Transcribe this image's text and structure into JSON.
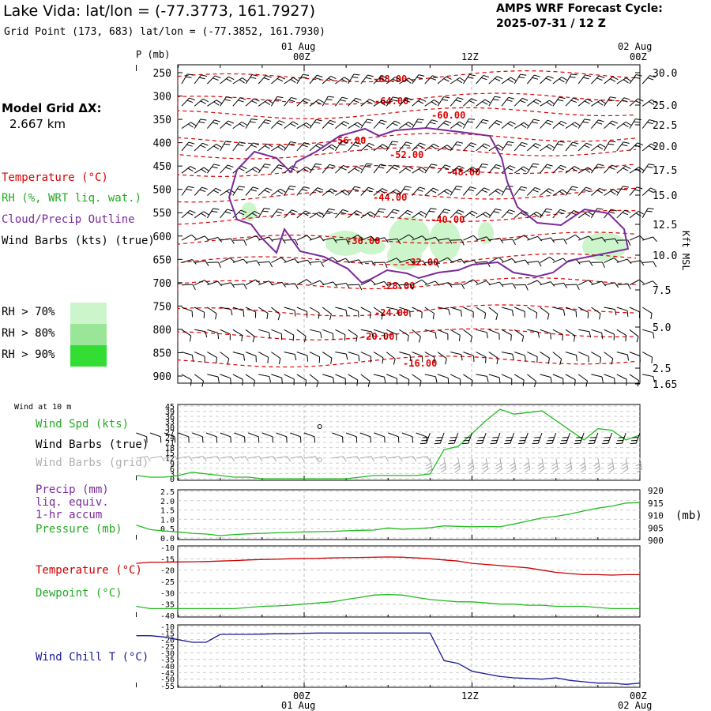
{
  "header": {
    "title": "Lake Vida:  lat/lon = (-77.3773, 161.7927)",
    "subtitle": "Grid Point (173, 683) lat/lon = (-77.3852, 161.7930)",
    "forecast_label": "AMPS WRF Forecast Cycle:",
    "forecast_cycle": "2025-07-31 / 12  Z",
    "grid_label": "Model Grid ΔX:",
    "grid_value": "2.667 km"
  },
  "legend_top": {
    "temperature": "Temperature (°C)",
    "rh": "RH (%, WRT liq. wat.)",
    "cloud": "Cloud/Precip Outline",
    "wind": "Wind Barbs (kts) (true)",
    "rh70": "RH > 70%",
    "rh80": "RH > 80%",
    "rh90": "RH > 90%"
  },
  "colors": {
    "temperature": "#dd0000",
    "rh_label": "#22aa22",
    "cloud": "#7a2a9a",
    "rh70": "#ccf5cc",
    "rh80": "#99e699",
    "rh90": "#33dd33",
    "wind_speed": "#22bb22",
    "precip": "#7a2a9a",
    "pressure": "#22bb22",
    "sfc_temp": "#cc0000",
    "dewpoint": "#22bb22",
    "windchill": "#1a1a99",
    "grid_barbs": "#aaaaaa"
  },
  "time_axis": {
    "top_date_left": "01 Aug",
    "top_date_right": "02 Aug",
    "ticks": [
      "00Z",
      "12Z",
      "00Z"
    ],
    "bottom_date_left": "01 Aug",
    "bottom_date_right": "02 Aug"
  },
  "cross_section": {
    "p_label": "P (mb)",
    "pressure_ticks": [
      "250",
      "300",
      "350",
      "400",
      "450",
      "500",
      "550",
      "600",
      "650",
      "700",
      "750",
      "800",
      "850",
      "900"
    ],
    "height_label": "Kft MSL",
    "height_ticks": [
      "30.0",
      "25.0",
      "22.5",
      "20.0",
      "17.5",
      "15.0",
      "12.5",
      "10.0",
      "7.5",
      "5.0",
      "2.5",
      "1.65"
    ],
    "isotherm_labels": [
      "-68.00",
      "-64.00",
      "-60.00",
      "-56.00",
      "-52.00",
      "-48.00",
      "-44.00",
      "-40.00",
      "-36.00",
      "-32.00",
      "-28.00",
      "-24.00",
      "-20.00",
      "-16.00"
    ]
  },
  "panel_wind": {
    "header": "Wind at 10 m",
    "spd_label": "Wind Spd (kts)",
    "barbs_true": "Wind Barbs (true)",
    "barbs_grid": "Wind Barbs (grid)",
    "yticks": [
      "45",
      "39",
      "36",
      "33",
      "30",
      "27",
      "24",
      "21",
      "18",
      "15",
      "12",
      "9",
      "6",
      "3",
      "0"
    ]
  },
  "panel_precip": {
    "precip_label": "Precip (mm)",
    "liq": "liq. equiv.",
    "accum": "1-hr accum",
    "pressure_label": "Pressure (mb)",
    "unit": "(mb)",
    "left_ticks": [
      "2.5",
      "2.0",
      "1.5",
      "1.0",
      "0.5",
      "0.0"
    ],
    "right_ticks": [
      "920",
      "915",
      "910",
      "905",
      "900"
    ]
  },
  "panel_temp": {
    "temp_label": "Temperature (°C)",
    "dew_label": "Dewpoint (°C)",
    "yticks": [
      "-10",
      "-15",
      "-20",
      "-25",
      "-30",
      "-35",
      "-40"
    ]
  },
  "panel_chill": {
    "label": "Wind Chill T (°C)",
    "yticks": [
      "-10",
      "-15",
      "-20",
      "-25",
      "-30",
      "-35",
      "-40",
      "-45",
      "-50",
      "-55"
    ]
  },
  "chart_data": [
    {
      "type": "line",
      "title": "Cross-section",
      "x": [
        0,
        36
      ],
      "ylabel": "P (mb)",
      "ylim": [
        250,
        900
      ],
      "isotherms_C": [
        -68,
        -64,
        -60,
        -56,
        -52,
        -48,
        -44,
        -40,
        -36,
        -32,
        -28,
        -24,
        -20,
        -16
      ],
      "y2label": "Kft MSL"
    },
    {
      "type": "line",
      "title": "Wind Spd (kts)",
      "x": [
        -12,
        -11,
        -10,
        -9,
        -8,
        -7,
        -6,
        -5,
        -4,
        -3,
        -2,
        -1,
        0,
        1,
        2,
        3,
        4,
        5,
        6,
        7,
        8,
        9,
        10,
        11,
        12,
        13,
        14,
        15,
        16,
        17,
        18,
        19,
        20,
        21,
        22,
        23,
        24
      ],
      "ylim": [
        0,
        45
      ],
      "series": [
        {
          "name": "Wind Spd (kts)",
          "values": [
            2,
            1,
            1,
            2,
            4,
            3,
            2,
            1,
            1,
            0,
            0,
            0,
            0,
            0,
            0,
            0,
            1,
            2,
            2,
            2,
            2,
            3,
            18,
            20,
            28,
            36,
            43,
            40,
            41,
            42,
            36,
            30,
            24,
            31,
            30,
            24,
            27
          ]
        }
      ]
    },
    {
      "type": "line",
      "title": "Precip / Pressure",
      "x": [
        -12,
        -11,
        -10,
        -9,
        -8,
        -7,
        -6,
        -5,
        -4,
        -3,
        -2,
        -1,
        0,
        1,
        2,
        3,
        4,
        5,
        6,
        7,
        8,
        9,
        10,
        11,
        12,
        13,
        14,
        15,
        16,
        17,
        18,
        19,
        20,
        21,
        22,
        23,
        24
      ],
      "ylim": [
        0,
        2.5
      ],
      "y2lim": [
        900,
        920
      ],
      "series": [
        {
          "name": "Pressure (mb)",
          "values": [
            905.5,
            903.6,
            903,
            902.6,
            902,
            901.7,
            901,
            901.5,
            901.8,
            902,
            902.2,
            902.4,
            902.6,
            902.7,
            902.8,
            903.1,
            903.3,
            903.4,
            904.3,
            903.8,
            904,
            904.4,
            905.2,
            905,
            904.8,
            904.9,
            904.8,
            906,
            907.3,
            908.6,
            909.3,
            910.3,
            911.6,
            912.8,
            913.7,
            915,
            915.2
          ]
        },
        {
          "name": "Precip (mm)",
          "values": [
            0,
            0,
            0,
            0,
            0,
            0,
            0,
            0,
            0,
            0,
            0,
            0,
            0,
            0,
            0,
            0,
            0,
            0,
            0,
            0,
            0,
            0,
            0,
            0,
            0,
            0,
            0,
            0,
            0,
            0,
            0,
            0,
            0,
            0,
            0,
            0,
            0
          ]
        }
      ]
    },
    {
      "type": "line",
      "title": "Temperature / Dewpoint",
      "x": [
        -12,
        -11,
        -10,
        -9,
        -8,
        -7,
        -6,
        -5,
        -4,
        -3,
        -2,
        -1,
        0,
        1,
        2,
        3,
        4,
        5,
        6,
        7,
        8,
        9,
        10,
        11,
        12,
        13,
        14,
        15,
        16,
        17,
        18,
        19,
        20,
        21,
        22,
        23,
        24
      ],
      "ylim": [
        -40,
        -10
      ],
      "series": [
        {
          "name": "Temperature (°C)",
          "values": [
            -17,
            -16.5,
            -16.5,
            -16.4,
            -16.3,
            -16.2,
            -16,
            -15.8,
            -15.5,
            -15.3,
            -15.2,
            -15,
            -14.9,
            -14.8,
            -14.6,
            -14.5,
            -14.4,
            -14.3,
            -14.2,
            -14.3,
            -14.6,
            -15,
            -15.5,
            -16,
            -17,
            -17.5,
            -18,
            -18.5,
            -19,
            -20,
            -21,
            -21.5,
            -22,
            -22,
            -22.2,
            -22,
            -22
          ]
        },
        {
          "name": "Dewpoint (°C)",
          "values": [
            -36,
            -37,
            -37,
            -37,
            -37,
            -37,
            -37,
            -37,
            -36.5,
            -36,
            -35.8,
            -35.5,
            -35,
            -34.5,
            -34,
            -33,
            -32,
            -31,
            -30.8,
            -31,
            -32,
            -33,
            -33.5,
            -34,
            -34,
            -34.5,
            -35,
            -35,
            -35.5,
            -35.5,
            -36,
            -36,
            -36,
            -36.5,
            -37,
            -37,
            -37
          ]
        }
      ]
    },
    {
      "type": "line",
      "title": "Wind Chill T (°C)",
      "x": [
        -12,
        -11,
        -10,
        -9,
        -8,
        -7,
        -6,
        -5,
        -4,
        -3,
        -2,
        -1,
        0,
        1,
        2,
        3,
        4,
        5,
        6,
        7,
        8,
        9,
        10,
        11,
        12,
        13,
        14,
        15,
        16,
        17,
        18,
        19,
        20,
        21,
        22,
        23,
        24
      ],
      "ylim": [
        -55,
        -10
      ],
      "series": [
        {
          "name": "Wind Chill T (°C)",
          "values": [
            -17,
            -17,
            -18,
            -20,
            -22,
            -22,
            -16,
            -16,
            -16,
            -15.8,
            -15.5,
            -15.5,
            -15.2,
            -15,
            -15,
            -15,
            -15,
            -15,
            -15,
            -15,
            -15,
            -15,
            -36,
            -38,
            -44,
            -46,
            -48,
            -49,
            -49.5,
            -50,
            -49,
            -51,
            -52,
            -53,
            -53,
            -54,
            -53
          ]
        }
      ]
    }
  ]
}
